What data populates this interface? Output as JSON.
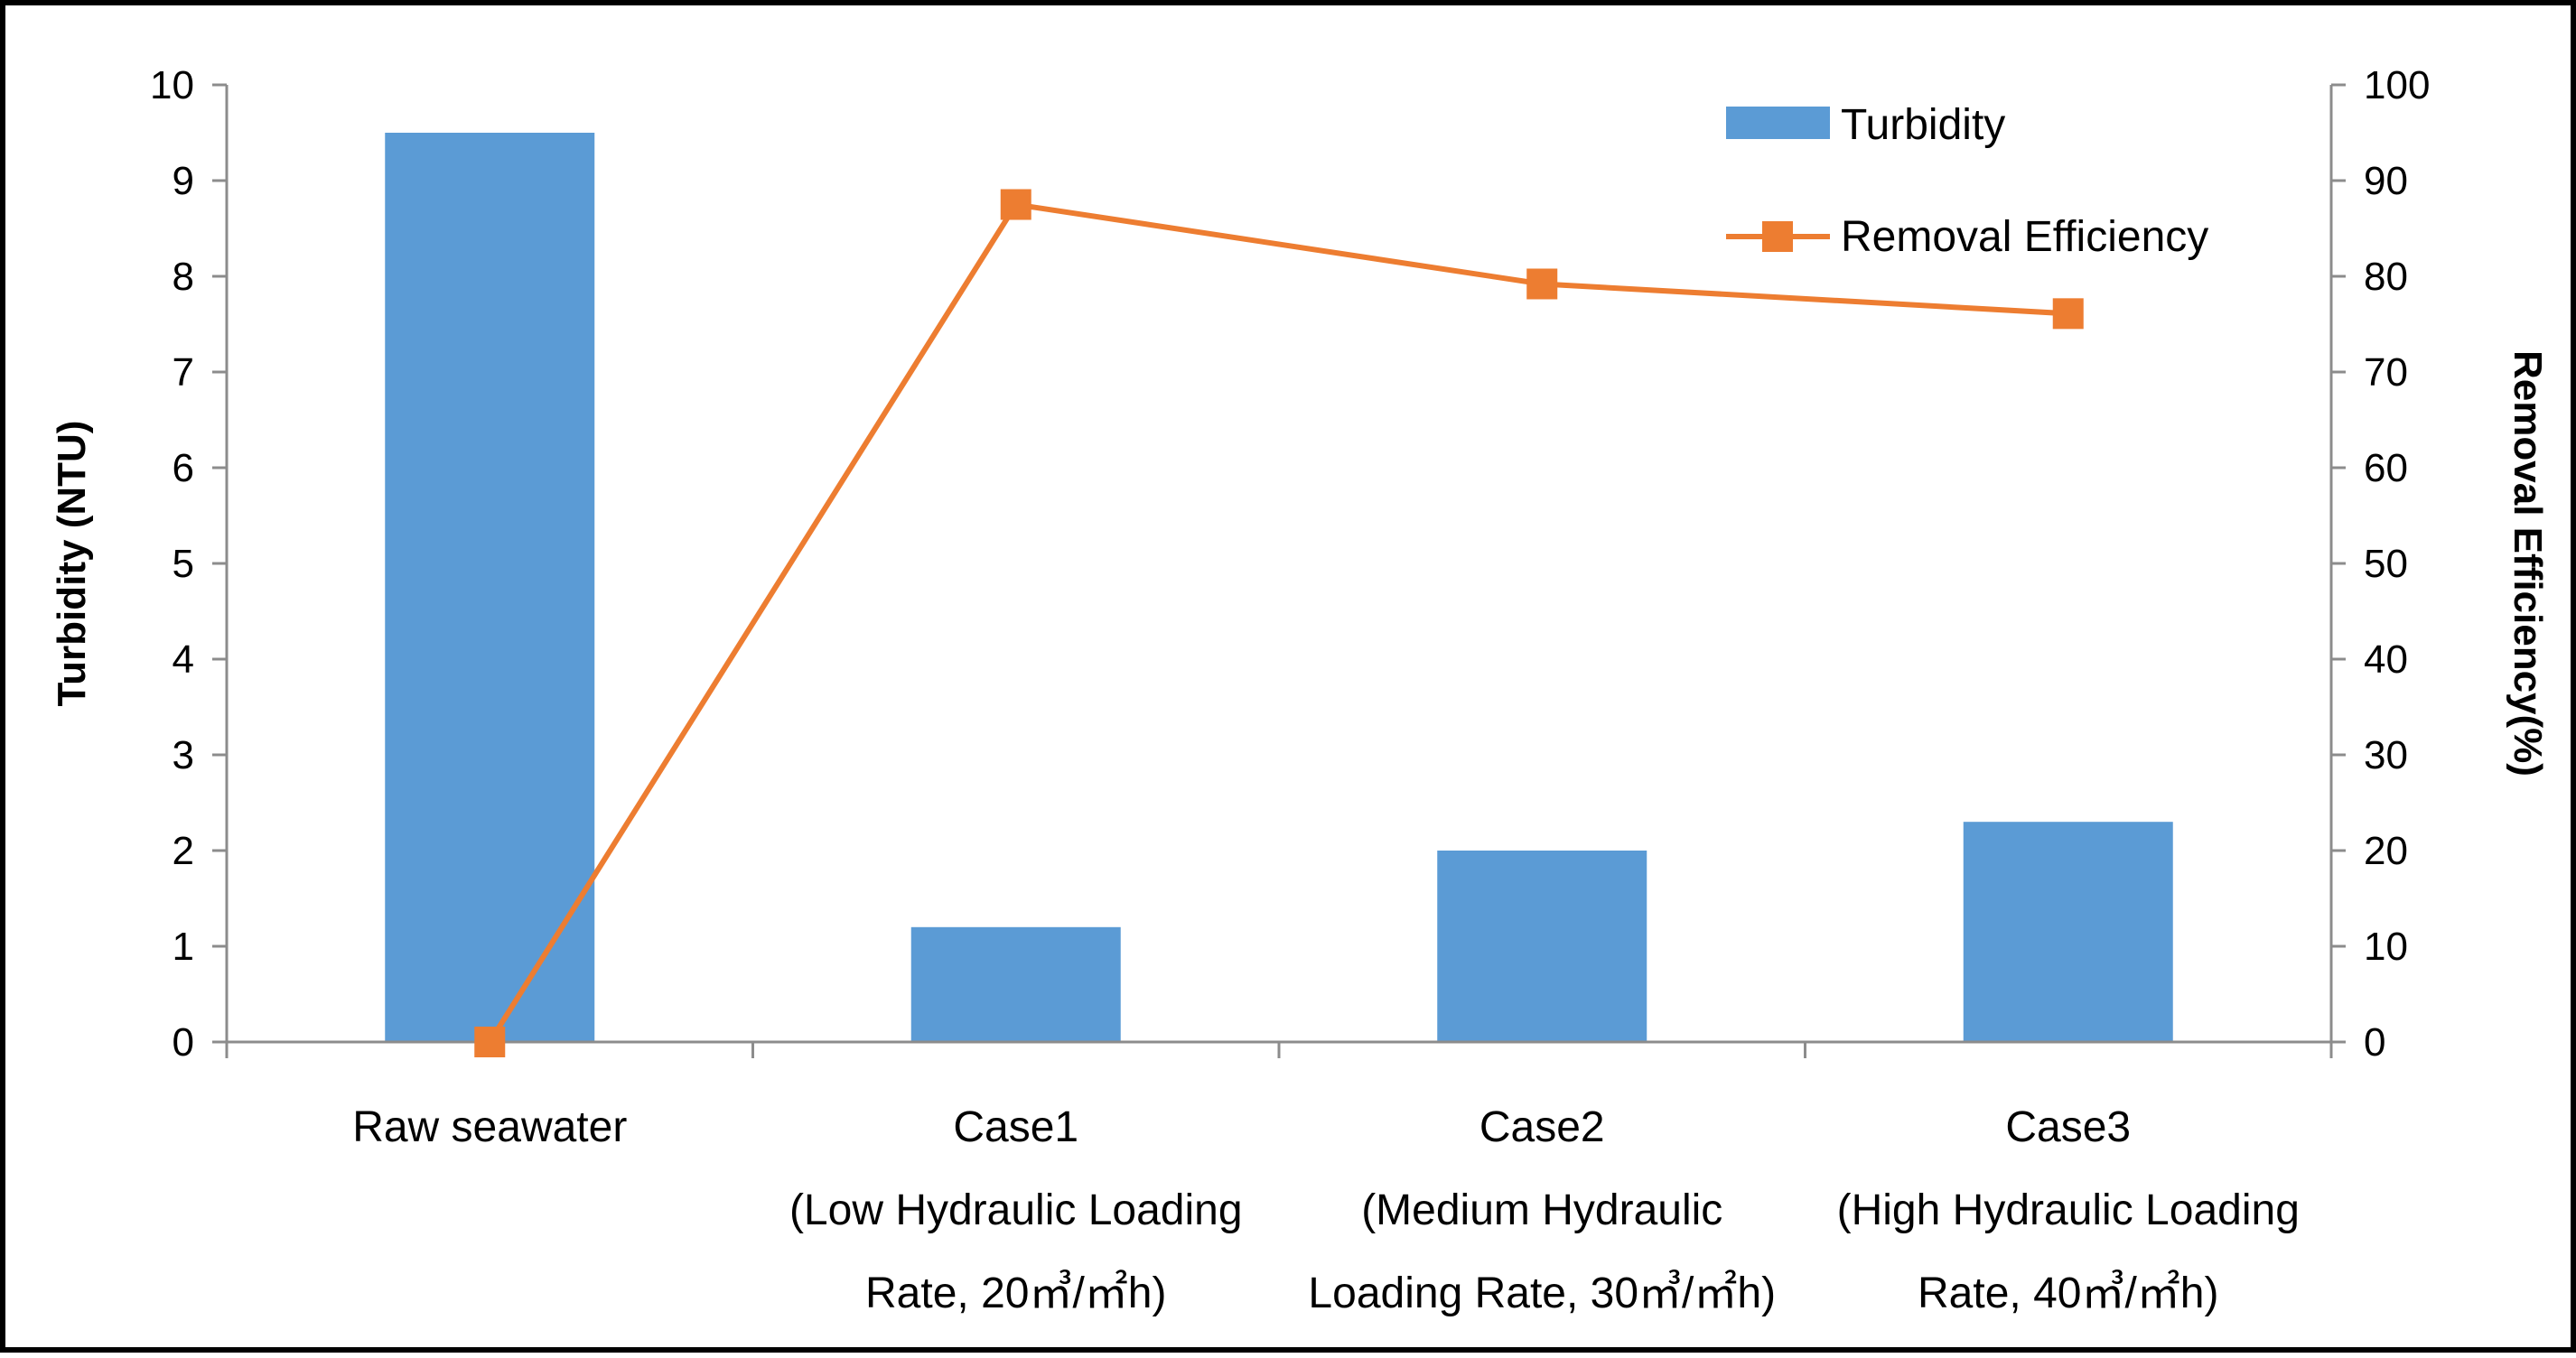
{
  "chart_data": {
    "type": "bar",
    "categories": [
      [
        "Raw seawater"
      ],
      [
        "Case1",
        "(Low Hydraulic Loading",
        "Rate, 20㎥/㎡h)"
      ],
      [
        "Case2",
        "(Medium Hydraulic",
        "Loading Rate, 30㎥/㎡h)"
      ],
      [
        "Case3",
        "(High Hydraulic Loading",
        "Rate, 40㎥/㎡h)"
      ]
    ],
    "series": [
      {
        "name": "Turbidity",
        "type": "bar",
        "axis": "left",
        "color": "#5b9bd5",
        "values": [
          9.5,
          1.2,
          2.0,
          2.3
        ]
      },
      {
        "name": "Removal Efficiency",
        "type": "line",
        "axis": "right",
        "color": "#ed7d31",
        "marker": "square",
        "values": [
          0,
          87.5,
          79.2,
          76.1
        ]
      }
    ],
    "ylabel": "Turbidity (NTU)",
    "y2label": "Removal Efficiency(%)",
    "ylim": [
      0,
      10
    ],
    "y2lim": [
      0,
      100
    ],
    "yticks": [
      "0",
      "1",
      "2",
      "3",
      "4",
      "5",
      "6",
      "7",
      "8",
      "9",
      "10"
    ],
    "y2ticks": [
      "0",
      "10",
      "20",
      "30",
      "40",
      "50",
      "60",
      "70",
      "80",
      "90",
      "100"
    ],
    "legend_position": "top-right",
    "grid": false
  }
}
